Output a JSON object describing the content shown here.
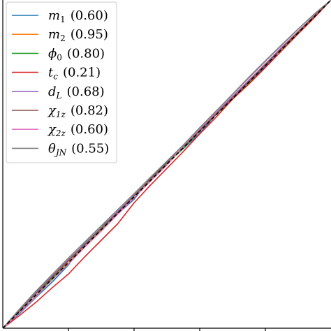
{
  "chart_data": {
    "type": "line",
    "title": "",
    "xlabel": "",
    "ylabel": "",
    "xlim": [
      0,
      1
    ],
    "ylim": [
      0,
      1
    ],
    "grid": false,
    "legend_position": "top-left",
    "reference_line": {
      "style": "dashed",
      "color": "#000000",
      "values": [
        [
          0,
          0
        ],
        [
          1,
          1
        ]
      ]
    },
    "series": [
      {
        "name": "m_1 (0.60)",
        "math": "m",
        "sub": "1",
        "pval": "(0.60)",
        "color": "#1f77b4",
        "values": [
          [
            0,
            0
          ],
          [
            0.05,
            0.044
          ],
          [
            0.1,
            0.093
          ],
          [
            0.15,
            0.14
          ],
          [
            0.2,
            0.193
          ],
          [
            0.25,
            0.262
          ],
          [
            0.3,
            0.312
          ],
          [
            0.35,
            0.348
          ],
          [
            0.4,
            0.393
          ],
          [
            0.45,
            0.457
          ],
          [
            0.5,
            0.506
          ],
          [
            0.55,
            0.547
          ],
          [
            0.6,
            0.594
          ],
          [
            0.65,
            0.651
          ],
          [
            0.7,
            0.703
          ],
          [
            0.75,
            0.747
          ],
          [
            0.8,
            0.798
          ],
          [
            0.85,
            0.853
          ],
          [
            0.9,
            0.902
          ],
          [
            0.95,
            0.948
          ],
          [
            1,
            1
          ]
        ]
      },
      {
        "name": "m_2 (0.95)",
        "math": "m",
        "sub": "2",
        "pval": "(0.95)",
        "color": "#ff7f0e",
        "values": [
          [
            0,
            0
          ],
          [
            0.05,
            0.053
          ],
          [
            0.1,
            0.106
          ],
          [
            0.15,
            0.152
          ],
          [
            0.2,
            0.204
          ],
          [
            0.25,
            0.251
          ],
          [
            0.3,
            0.302
          ],
          [
            0.35,
            0.35
          ],
          [
            0.4,
            0.404
          ],
          [
            0.45,
            0.451
          ],
          [
            0.5,
            0.498
          ],
          [
            0.55,
            0.552
          ],
          [
            0.6,
            0.601
          ],
          [
            0.65,
            0.654
          ],
          [
            0.7,
            0.702
          ],
          [
            0.75,
            0.753
          ],
          [
            0.8,
            0.806
          ],
          [
            0.85,
            0.851
          ],
          [
            0.9,
            0.904
          ],
          [
            0.95,
            0.951
          ],
          [
            1,
            1
          ]
        ]
      },
      {
        "name": "phi_0 (0.80)",
        "math": "ϕ",
        "sub": "0",
        "pval": "(0.80)",
        "color": "#2ca02c",
        "values": [
          [
            0,
            0
          ],
          [
            0.05,
            0.048
          ],
          [
            0.1,
            0.097
          ],
          [
            0.15,
            0.152
          ],
          [
            0.2,
            0.197
          ],
          [
            0.25,
            0.248
          ],
          [
            0.3,
            0.299
          ],
          [
            0.35,
            0.353
          ],
          [
            0.4,
            0.404
          ],
          [
            0.45,
            0.452
          ],
          [
            0.5,
            0.501
          ],
          [
            0.55,
            0.548
          ],
          [
            0.6,
            0.601
          ],
          [
            0.65,
            0.652
          ],
          [
            0.7,
            0.697
          ],
          [
            0.75,
            0.748
          ],
          [
            0.8,
            0.803
          ],
          [
            0.85,
            0.852
          ],
          [
            0.9,
            0.899
          ],
          [
            0.95,
            0.951
          ],
          [
            1,
            1
          ]
        ]
      },
      {
        "name": "t_c (0.21)",
        "math": "t",
        "sub": "c",
        "pval": "(0.21)",
        "color": "#d62728",
        "values": [
          [
            0,
            0
          ],
          [
            0.05,
            0.038
          ],
          [
            0.1,
            0.078
          ],
          [
            0.15,
            0.123
          ],
          [
            0.2,
            0.165
          ],
          [
            0.25,
            0.218
          ],
          [
            0.3,
            0.268
          ],
          [
            0.35,
            0.318
          ],
          [
            0.4,
            0.382
          ],
          [
            0.45,
            0.436
          ],
          [
            0.5,
            0.487
          ],
          [
            0.55,
            0.538
          ],
          [
            0.6,
            0.592
          ],
          [
            0.65,
            0.643
          ],
          [
            0.7,
            0.698
          ],
          [
            0.75,
            0.744
          ],
          [
            0.8,
            0.794
          ],
          [
            0.85,
            0.846
          ],
          [
            0.9,
            0.897
          ],
          [
            0.95,
            0.947
          ],
          [
            1,
            1
          ]
        ]
      },
      {
        "name": "d_L (0.68)",
        "math": "d",
        "sub": "L",
        "pval": "(0.68)",
        "color": "#9467bd",
        "values": [
          [
            0,
            0
          ],
          [
            0.05,
            0.056
          ],
          [
            0.1,
            0.108
          ],
          [
            0.15,
            0.158
          ],
          [
            0.2,
            0.209
          ],
          [
            0.25,
            0.257
          ],
          [
            0.3,
            0.306
          ],
          [
            0.35,
            0.356
          ],
          [
            0.4,
            0.405
          ],
          [
            0.45,
            0.454
          ],
          [
            0.5,
            0.503
          ],
          [
            0.55,
            0.553
          ],
          [
            0.6,
            0.604
          ],
          [
            0.65,
            0.655
          ],
          [
            0.7,
            0.706
          ],
          [
            0.75,
            0.755
          ],
          [
            0.8,
            0.805
          ],
          [
            0.85,
            0.856
          ],
          [
            0.9,
            0.904
          ],
          [
            0.95,
            0.953
          ],
          [
            1,
            1
          ]
        ]
      },
      {
        "name": "chi_1z (0.82)",
        "math": "χ",
        "sub": "1z",
        "pval": "(0.82)",
        "color": "#8c564b",
        "values": [
          [
            0,
            0
          ],
          [
            0.05,
            0.052
          ],
          [
            0.1,
            0.104
          ],
          [
            0.15,
            0.156
          ],
          [
            0.2,
            0.206
          ],
          [
            0.25,
            0.254
          ],
          [
            0.3,
            0.305
          ],
          [
            0.35,
            0.352
          ],
          [
            0.4,
            0.403
          ],
          [
            0.45,
            0.455
          ],
          [
            0.5,
            0.504
          ],
          [
            0.55,
            0.553
          ],
          [
            0.6,
            0.602
          ],
          [
            0.65,
            0.653
          ],
          [
            0.7,
            0.701
          ],
          [
            0.75,
            0.752
          ],
          [
            0.8,
            0.802
          ],
          [
            0.85,
            0.853
          ],
          [
            0.9,
            0.903
          ],
          [
            0.95,
            0.952
          ],
          [
            1,
            1
          ]
        ]
      },
      {
        "name": "chi_2z (0.60)",
        "math": "χ",
        "sub": "2z",
        "pval": "(0.60)",
        "color": "#e377c2",
        "values": [
          [
            0,
            0
          ],
          [
            0.05,
            0.047
          ],
          [
            0.1,
            0.095
          ],
          [
            0.15,
            0.147
          ],
          [
            0.2,
            0.196
          ],
          [
            0.25,
            0.247
          ],
          [
            0.3,
            0.296
          ],
          [
            0.35,
            0.347
          ],
          [
            0.4,
            0.398
          ],
          [
            0.45,
            0.448
          ],
          [
            0.5,
            0.497
          ],
          [
            0.55,
            0.556
          ],
          [
            0.6,
            0.608
          ],
          [
            0.65,
            0.659
          ],
          [
            0.7,
            0.712
          ],
          [
            0.75,
            0.762
          ],
          [
            0.8,
            0.813
          ],
          [
            0.85,
            0.862
          ],
          [
            0.9,
            0.911
          ],
          [
            0.95,
            0.958
          ],
          [
            1,
            1
          ]
        ]
      },
      {
        "name": "theta_JN (0.55)",
        "math": "θ",
        "sub": "JN",
        "pval": "(0.55)",
        "color": "#7f7f7f",
        "values": [
          [
            0,
            0
          ],
          [
            0.05,
            0.057
          ],
          [
            0.1,
            0.112
          ],
          [
            0.15,
            0.163
          ],
          [
            0.2,
            0.214
          ],
          [
            0.25,
            0.263
          ],
          [
            0.3,
            0.312
          ],
          [
            0.35,
            0.361
          ],
          [
            0.4,
            0.41
          ],
          [
            0.45,
            0.46
          ],
          [
            0.5,
            0.509
          ],
          [
            0.55,
            0.558
          ],
          [
            0.6,
            0.611
          ],
          [
            0.65,
            0.662
          ],
          [
            0.7,
            0.713
          ],
          [
            0.75,
            0.765
          ],
          [
            0.8,
            0.815
          ],
          [
            0.85,
            0.864
          ],
          [
            0.9,
            0.912
          ],
          [
            0.95,
            0.958
          ],
          [
            1,
            1
          ]
        ]
      }
    ]
  }
}
